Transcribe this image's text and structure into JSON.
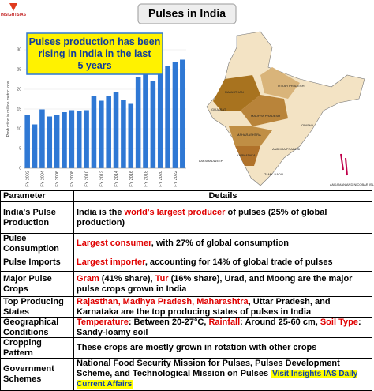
{
  "header": {
    "logo": "INSIGHTSIAS",
    "title": "Pulses in India"
  },
  "chart_data": {
    "type": "bar",
    "annotation": "Pulses production has been rising in India in the last 5 years",
    "y_label": "Production in million metric tons",
    "categories": [
      "FY 2002",
      null,
      "FY 2004",
      null,
      "FY 2006",
      null,
      "FY 2008",
      null,
      "FY 2010",
      null,
      "FY 2012",
      null,
      "FY 2014",
      null,
      "FY 2016",
      null,
      "FY 2018",
      null,
      "FY 2020",
      null,
      "FY 2022",
      null
    ],
    "values": [
      13.4,
      11.1,
      14.9,
      13.1,
      13.4,
      14.2,
      14.7,
      14.6,
      14.7,
      18.2,
      17.1,
      18.3,
      19.3,
      17.2,
      16.3,
      23.1,
      25.4,
      22.1,
      24.5,
      26.0,
      27.0,
      27.5
    ],
    "color": "#2f78d4",
    "ylim": [
      0,
      30
    ],
    "yticks": [
      0,
      5,
      10,
      15,
      20,
      25,
      30
    ],
    "grid": true
  },
  "map": {
    "labels": [
      "RAJASTHAN",
      "GUJARAT",
      "MADHYA PRADESH",
      "UTTAR PRADESH",
      "MAHARASHTRA",
      "KARNATAKA",
      "ANDHRA PRADESH",
      "TAMIL NADU",
      "ODISHA",
      "LAKSHADWEEP",
      "ANDAMAN AND NICOBAR ISLANDS"
    ]
  },
  "table": {
    "columns": [
      "Parameter",
      "Details"
    ],
    "rows": [
      {
        "parameter": "India's Pulse Production",
        "details": [
          {
            "text": "India is the "
          },
          {
            "text": "world's largest producer",
            "highlight": true
          },
          {
            "text": " of pulses (25% of global production)"
          }
        ]
      },
      {
        "parameter": "Pulse Consumption",
        "details": [
          {
            "text": "Largest consumer",
            "highlight": true
          },
          {
            "text": ", with 27% of global consumption"
          }
        ]
      },
      {
        "parameter": "Pulse Imports",
        "details": [
          {
            "text": "Largest importer",
            "highlight": true
          },
          {
            "text": ", accounting for 14% of global trade of pulses"
          }
        ]
      },
      {
        "parameter": "Major Pulse Crops",
        "details": [
          {
            "text": "Gram",
            "highlight": true
          },
          {
            "text": " (41% share), "
          },
          {
            "text": "Tur",
            "highlight": true
          },
          {
            "text": " (16% share), Urad, and Moong are the major pulse crops grown in India"
          }
        ]
      },
      {
        "parameter": "Top Producing States",
        "details": [
          {
            "text": "Rajasthan, Madhya Pradesh, Maharashtra",
            "highlight": true
          },
          {
            "text": ", Uttar Pradesh, and Karnataka are the top producing states of pulses in India"
          }
        ]
      },
      {
        "parameter": "Geographical Conditions",
        "details": [
          {
            "text": "Temperature",
            "highlight": true
          },
          {
            "text": ": Between 20-27°C, "
          },
          {
            "text": "Rainfall",
            "highlight": true
          },
          {
            "text": ": Around 25-60 cm, "
          },
          {
            "text": "Soil Type",
            "highlight": true
          },
          {
            "text": ": Sandy-loamy soil"
          }
        ]
      },
      {
        "parameter": "Cropping Pattern",
        "details": [
          {
            "text": "These crops are mostly grown in rotation with other crops"
          }
        ]
      },
      {
        "parameter": "Government Schemes",
        "details": [
          {
            "text": "National Food Security Mission for Pulses, Pulses Development Scheme, and Technological Mission on Pulses"
          }
        ]
      }
    ],
    "footer_note": "Visit Insights IAS Daily Current Affairs"
  }
}
